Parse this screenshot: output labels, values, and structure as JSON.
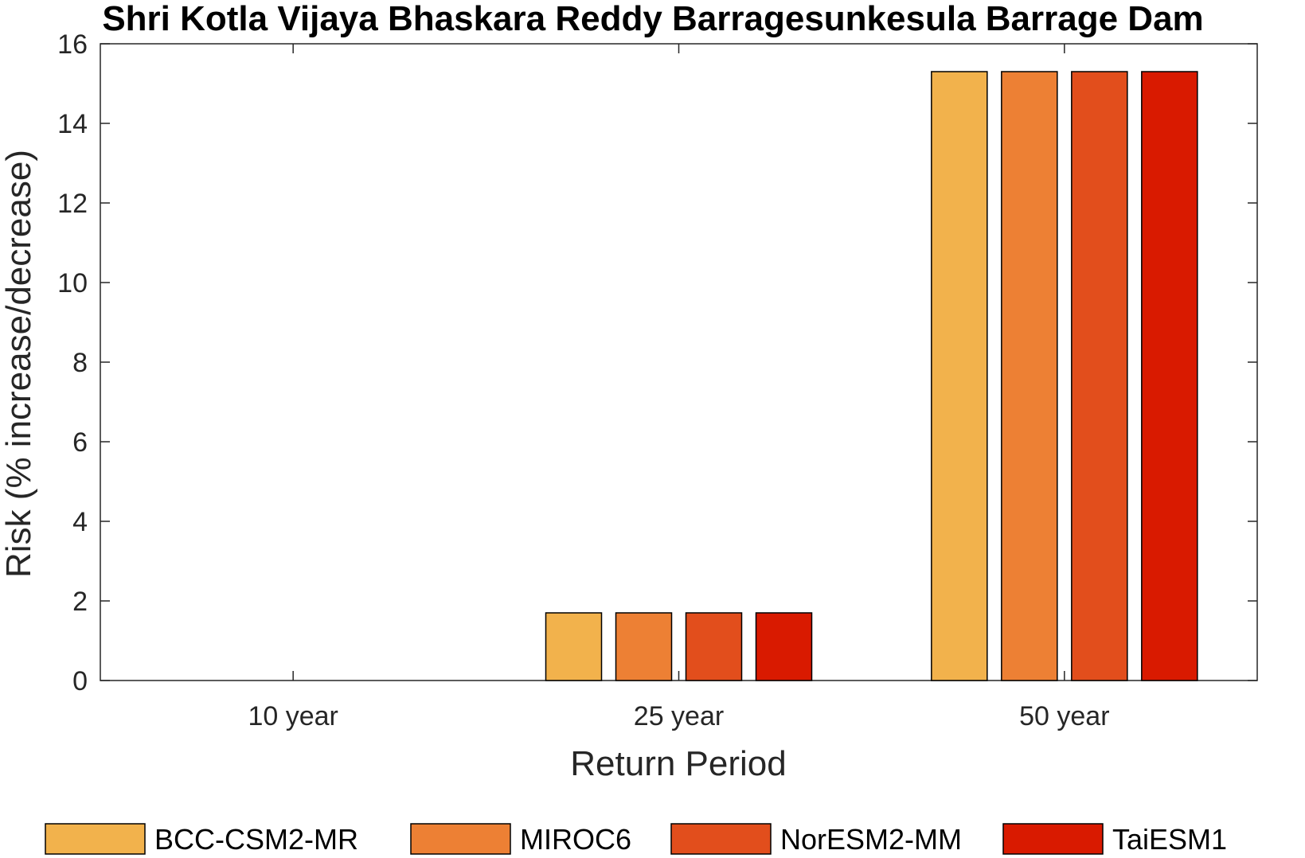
{
  "chart_data": {
    "type": "bar",
    "title": "Shri Kotla Vijaya Bhaskara Reddy Barragesunkesula Barrage Dam",
    "xlabel": "Return Period",
    "ylabel": "Risk (% increase/decrease)",
    "categories": [
      "10 year",
      "25 year",
      "50 year"
    ],
    "ylim": [
      0,
      16
    ],
    "yticks": [
      0,
      2,
      4,
      6,
      8,
      10,
      12,
      14,
      16
    ],
    "grid": false,
    "legend_position": "bottom",
    "series": [
      {
        "name": "BCC-CSM2-MR",
        "color": "#F2B24C",
        "values": [
          0,
          1.7,
          15.3
        ]
      },
      {
        "name": "MIROC6",
        "color": "#ED8034",
        "values": [
          0,
          1.7,
          15.3
        ]
      },
      {
        "name": "NorESM2-MM",
        "color": "#E24E1C",
        "values": [
          0,
          1.7,
          15.3
        ]
      },
      {
        "name": "TaiESM1",
        "color": "#D91A00",
        "values": [
          0,
          1.7,
          15.3
        ]
      }
    ]
  }
}
